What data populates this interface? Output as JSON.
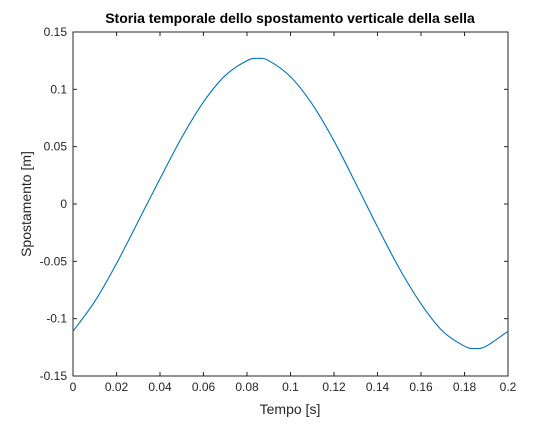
{
  "chart_data": {
    "type": "line",
    "title": "Storia temporale dello spostamento verticale della sella",
    "xlabel": "Tempo [s]",
    "ylabel": "Spostamento [m]",
    "xlim": [
      0,
      0.2
    ],
    "ylim": [
      -0.15,
      0.15
    ],
    "x_ticks": [
      "0",
      "0.02",
      "0.04",
      "0.06",
      "0.08",
      "0.1",
      "0.12",
      "0.14",
      "0.16",
      "0.18",
      "0.2"
    ],
    "y_ticks": [
      "-0.15",
      "-0.1",
      "-0.05",
      "0",
      "0.05",
      "0.1",
      "0.15"
    ],
    "grid": true,
    "legend": "none",
    "series": [
      {
        "color": "#0072bd",
        "x": [
          0,
          0.01,
          0.02,
          0.03,
          0.04,
          0.05,
          0.06,
          0.07,
          0.08,
          0.085,
          0.09,
          0.1,
          0.11,
          0.12,
          0.13,
          0.14,
          0.15,
          0.16,
          0.17,
          0.18,
          0.185,
          0.19,
          0.2
        ],
        "y": [
          -0.111,
          -0.085,
          -0.052,
          -0.015,
          0.022,
          0.058,
          0.089,
          0.112,
          0.125,
          0.127,
          0.125,
          0.111,
          0.087,
          0.055,
          0.018,
          -0.02,
          -0.056,
          -0.087,
          -0.111,
          -0.124,
          -0.126,
          -0.124,
          -0.111
        ]
      }
    ]
  }
}
